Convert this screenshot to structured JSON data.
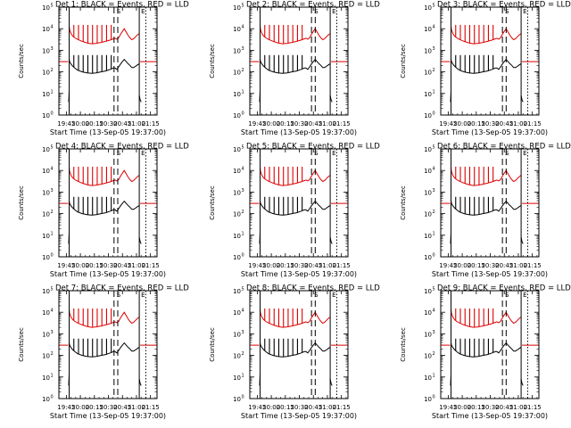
{
  "chart_data": [
    {
      "type": "line",
      "title": "Det 1: BLACK = Events, RED = LLD",
      "detector": 1,
      "variant": "a"
    },
    {
      "type": "line",
      "title": "Det 2: BLACK = Events, RED = LLD",
      "detector": 2,
      "variant": "b"
    },
    {
      "type": "line",
      "title": "Det 3: BLACK = Events, RED = LLD",
      "detector": 3,
      "variant": "b"
    },
    {
      "type": "line",
      "title": "Det 4: BLACK = Events, RED = LLD",
      "detector": 4,
      "variant": "a"
    },
    {
      "type": "line",
      "title": "Det 5: BLACK = Events, RED = LLD",
      "detector": 5,
      "variant": "b"
    },
    {
      "type": "line",
      "title": "Det 6: BLACK = Events, RED = LLD",
      "detector": 6,
      "variant": "b"
    },
    {
      "type": "line",
      "title": "Det 7: BLACK = Events, RED = LLD",
      "detector": 7,
      "variant": "a"
    },
    {
      "type": "line",
      "title": "Det 8: BLACK = Events, RED = LLD",
      "detector": 8,
      "variant": "b"
    },
    {
      "type": "line",
      "title": "Det 9: BLACK = Events, RED = LLD",
      "detector": 9,
      "variant": "b"
    }
  ],
  "shared": {
    "ylabel": "Counts/sec",
    "xlabel": "Start Time (13-Sep-05 19:37:00)",
    "x_ticks": [
      "19:45",
      "20:00",
      "20:15",
      "20:30",
      "20:45",
      "21:00",
      "21:15"
    ],
    "x_tick_minutes": [
      8,
      23,
      38,
      53,
      68,
      83,
      98
    ],
    "x_range_minutes": [
      0,
      105
    ],
    "y_scale": "log",
    "y_range": [
      1,
      100000
    ],
    "y_tick_base": "10",
    "y_tick_exponents": [
      "0",
      "1",
      "2",
      "3",
      "4",
      "5"
    ],
    "markers": {
      "solid_lines_minutes": [
        11,
        86
      ],
      "dotted_line_minutes": 93,
      "dashed_lines_minutes": {
        "a": [
          59,
          63
        ],
        "b": [
          66,
          70
        ]
      },
      "labels": [
        "S",
        "E"
      ]
    },
    "colors": {
      "events": "#000000",
      "lld": "#dd0000"
    },
    "series": [
      {
        "name": "BLACK = Events",
        "color": "#000000",
        "segments": [
          {
            "minutes": [
              10.5,
              11
            ],
            "counts": [
              4,
              13
            ]
          },
          {
            "minutes": [
              11,
              11.5,
              13,
              15,
              17,
              20,
              25,
              30,
              35,
              40,
              45,
              50,
              55,
              58.5,
              60,
              62,
              64,
              66,
              68,
              70,
              72,
              74,
              76,
              78,
              80,
              82,
              84,
              86
            ],
            "counts": [
              400,
              300,
              230,
              180,
              150,
              120,
              100,
              90,
              85,
              90,
              100,
              110,
              130,
              150,
              150,
              130,
              170,
              230,
              300,
              380,
              300,
              240,
              200,
              160,
              160,
              180,
              210,
              240
            ]
          },
          {
            "minutes": [
              86,
              87,
              88
            ],
            "counts": [
              8,
              5,
              4
            ]
          }
        ],
        "spikes_minutes": [
          16,
          21,
          26,
          31,
          36,
          41,
          46,
          51,
          56
        ],
        "spike_counts": 600
      },
      {
        "name": "RED = LLD",
        "color": "#dd0000",
        "segments": [
          {
            "minutes": [
              0,
              10
            ],
            "counts": [
              300,
              300
            ]
          },
          {
            "minutes": [
              11,
              11.5,
              13,
              15,
              17,
              20,
              25,
              30,
              35,
              40,
              45,
              50,
              55,
              58.5,
              60,
              62,
              64,
              66,
              68,
              70,
              72,
              74,
              76,
              78,
              80,
              82,
              84,
              86
            ],
            "counts": [
              14000,
              9000,
              6000,
              4500,
              3800,
              3200,
              2600,
              2200,
              2000,
              2100,
              2300,
              2600,
              3000,
              3400,
              3600,
              3300,
              3800,
              5500,
              7500,
              10000,
              7000,
              5000,
              3800,
              3100,
              3400,
              4200,
              5200,
              6000
            ]
          },
          {
            "minutes": [
              87,
              105
            ],
            "counts": [
              300,
              300
            ]
          }
        ],
        "spikes_minutes": [
          16,
          21,
          26,
          31,
          36,
          41,
          46,
          51,
          56
        ],
        "spike_counts": 15000
      }
    ]
  }
}
